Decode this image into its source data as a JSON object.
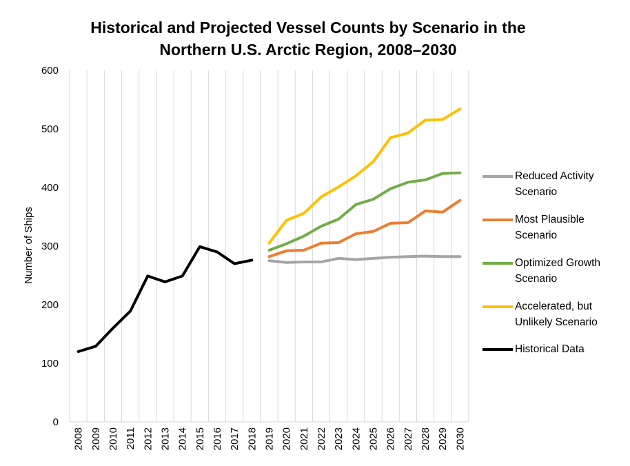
{
  "chart_data": {
    "type": "line",
    "title_lines": [
      "Historical and Projected Vessel Counts by Scenario in the",
      "Northern U.S. Arctic Region, 2008–2030"
    ],
    "xlabel": "",
    "ylabel": "Number of Ships",
    "ylim": [
      0,
      600
    ],
    "yticks": [
      "0",
      "100",
      "200",
      "300",
      "400",
      "500",
      "600"
    ],
    "categories": [
      "2008",
      "2009",
      "2010",
      "2011",
      "2012",
      "2013",
      "2014",
      "2015",
      "2016",
      "2017",
      "2018",
      "2019",
      "2020",
      "2021",
      "2022",
      "2023",
      "2024",
      "2025",
      "2026",
      "2027",
      "2028",
      "2029",
      "2030"
    ],
    "grid": "vertical",
    "legend_position": "right",
    "series": [
      {
        "name": "Reduced Activity Scenario",
        "legend_label": "Reduced Activity\nScenario",
        "color": "#a5a5a5",
        "x": [
          "2019",
          "2020",
          "2021",
          "2022",
          "2023",
          "2024",
          "2025",
          "2026",
          "2027",
          "2028",
          "2029",
          "2030"
        ],
        "values": [
          275,
          272,
          273,
          273,
          279,
          277,
          279,
          281,
          282,
          283,
          282,
          282
        ]
      },
      {
        "name": "Most Plausible Scenario",
        "legend_label": "Most Plausible\nScenario",
        "color": "#ed7d31",
        "x": [
          "2019",
          "2020",
          "2021",
          "2022",
          "2023",
          "2024",
          "2025",
          "2026",
          "2027",
          "2028",
          "2029",
          "2030"
        ],
        "values": [
          282,
          292,
          293,
          305,
          306,
          321,
          325,
          339,
          340,
          360,
          358,
          378
        ]
      },
      {
        "name": "Optimized Growth Scenario",
        "legend_label": "Optimized Growth\nScenario",
        "color": "#70ad47",
        "x": [
          "2019",
          "2020",
          "2021",
          "2022",
          "2023",
          "2024",
          "2025",
          "2026",
          "2027",
          "2028",
          "2029",
          "2030"
        ],
        "values": [
          293,
          304,
          317,
          334,
          346,
          371,
          380,
          398,
          409,
          413,
          424,
          425
        ]
      },
      {
        "name": "Accelerated, but Unlikely Scenario",
        "legend_label": "Accelerated, but\nUnlikely Scenario",
        "color": "#ffc000",
        "x": [
          "2019",
          "2020",
          "2021",
          "2022",
          "2023",
          "2024",
          "2025",
          "2026",
          "2027",
          "2028",
          "2029",
          "2030"
        ],
        "values": [
          305,
          344,
          356,
          384,
          401,
          420,
          444,
          485,
          493,
          515,
          516,
          534
        ]
      },
      {
        "name": "Historical Data",
        "legend_label": "Historical Data",
        "color": "#000000",
        "x": [
          "2008",
          "2009",
          "2010",
          "2011",
          "2012",
          "2013",
          "2014",
          "2015",
          "2016",
          "2017",
          "2018"
        ],
        "values": [
          120,
          129,
          160,
          189,
          249,
          239,
          249,
          299,
          290,
          270,
          276
        ]
      }
    ]
  }
}
